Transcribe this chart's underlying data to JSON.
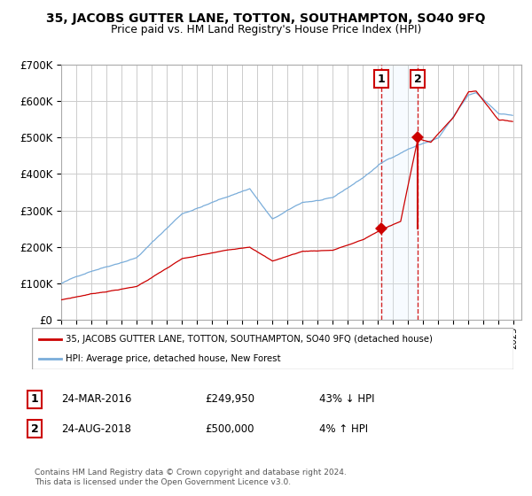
{
  "title": "35, JACOBS GUTTER LANE, TOTTON, SOUTHAMPTON, SO40 9FQ",
  "subtitle": "Price paid vs. HM Land Registry's House Price Index (HPI)",
  "legend_label_red": "35, JACOBS GUTTER LANE, TOTTON, SOUTHAMPTON, SO40 9FQ (detached house)",
  "legend_label_blue": "HPI: Average price, detached house, New Forest",
  "transaction1_date": "24-MAR-2016",
  "transaction1_price": 249950,
  "transaction1_year": 2016.21,
  "transaction2_date": "24-AUG-2018",
  "transaction2_price": 500000,
  "transaction2_year": 2018.64,
  "transaction1_pct": "43% ↓ HPI",
  "transaction2_pct": "4% ↑ HPI",
  "footnote": "Contains HM Land Registry data © Crown copyright and database right 2024.\nThis data is licensed under the Open Government Licence v3.0.",
  "red_color": "#cc0000",
  "blue_color": "#7aadda",
  "background_color": "#ffffff",
  "plot_bg_color": "#ffffff",
  "grid_color": "#cccccc",
  "shade_color": "#ddeeff",
  "ylim_max": 700000,
  "ylabel_ticks": [
    0,
    100000,
    200000,
    300000,
    400000,
    500000,
    600000,
    700000
  ],
  "start_year": 1995,
  "end_year": 2025
}
